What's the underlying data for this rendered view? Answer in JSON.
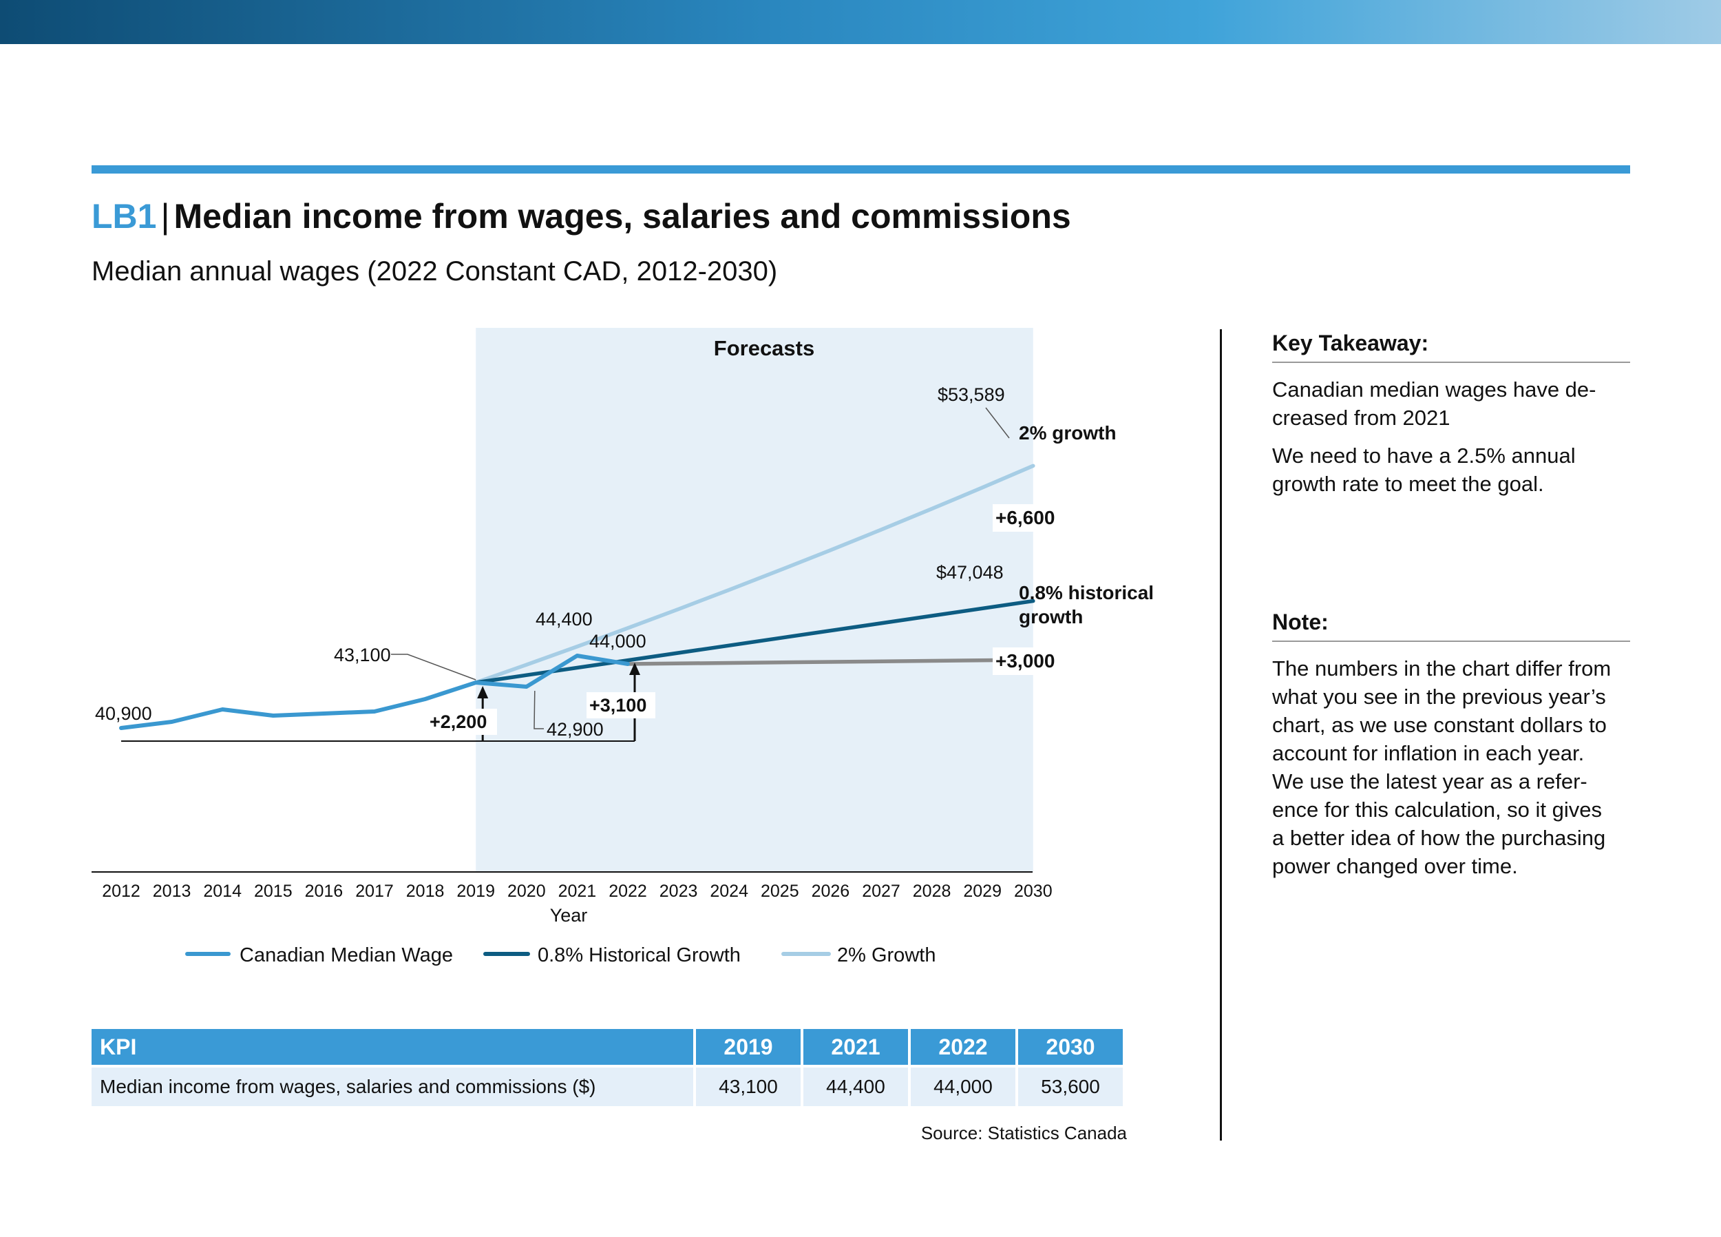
{
  "header": {
    "code": "LB1",
    "separator": "|",
    "title": "Median income from wages, salaries and commissions",
    "subtitle": "Median annual wages (2022 Constant CAD, 2012-2030)"
  },
  "chart_data": {
    "type": "line",
    "xlabel": "Year",
    "ylabel": "",
    "forecast_label": "Forecasts",
    "forecast_range": [
      2019,
      2030
    ],
    "x": [
      2012,
      2013,
      2014,
      2015,
      2016,
      2017,
      2018,
      2019,
      2020,
      2021,
      2022,
      2023,
      2024,
      2025,
      2026,
      2027,
      2028,
      2029,
      2030
    ],
    "series": [
      {
        "name": "Canadian Median Wage",
        "color": "#3a98d0",
        "x": [
          2012,
          2013,
          2014,
          2015,
          2016,
          2017,
          2018,
          2019,
          2020,
          2021,
          2022
        ],
        "values": [
          40900,
          41200,
          41800,
          41500,
          41600,
          41700,
          42300,
          43100,
          42900,
          44400,
          44000
        ]
      },
      {
        "name": "0.8% Historical Growth",
        "color": "#0d5c82",
        "x": [
          2019,
          2030
        ],
        "values": [
          43100,
          47048
        ]
      },
      {
        "name": "2% Growth",
        "color": "#a6cde5",
        "x": [
          2019,
          2020,
          2021,
          2022,
          2023,
          2024,
          2025,
          2026,
          2027,
          2028,
          2029,
          2030
        ],
        "values": [
          43100,
          43962,
          44841,
          45738,
          46653,
          47586,
          48538,
          49508,
          50499,
          51509,
          52539,
          53589
        ]
      },
      {
        "name": "",
        "color": "#8a8a8a",
        "x": [
          2022,
          2030
        ],
        "values": [
          44000,
          44200
        ]
      }
    ],
    "annotations": {
      "v2012": "40,900",
      "v2019": "43,100",
      "v2020": "42,900",
      "v2021": "44,400",
      "v2022": "44,000",
      "end_2pct": "$53,589",
      "end_hist": "$47,048",
      "label_2pct": "2% growth",
      "label_hist_1": "0.8% historical",
      "label_hist_2": "growth",
      "delta_2200": "+2,200",
      "delta_3100": "+3,100",
      "delta_6600": "+6,600",
      "delta_3000": "+3,000"
    },
    "legend_position": "bottom",
    "grid": false
  },
  "sidebar": {
    "takeaway_heading": "Key Takeaway:",
    "takeaway_lines": [
      "Canadian median wages have de-",
      "creased from 2021"
    ],
    "takeaway_p2_lines": [
      "We need to have a 2.5% annual",
      "growth rate to meet the goal."
    ],
    "note_heading": "Note:",
    "note_lines": [
      "The numbers in the chart differ from",
      "what you see in the previous year’s",
      "chart, as we use constant dollars to",
      "account for inflation in each year.",
      "We use the latest year as a refer-",
      "ence for this calculation, so it gives",
      "a better idea of how the purchasing",
      "power changed over time."
    ]
  },
  "kpi_table": {
    "headers": [
      "KPI",
      "2019",
      "2021",
      "2022",
      "2030"
    ],
    "row": [
      "Median income from wages, salaries and commissions ($)",
      "43,100",
      "44,400",
      "44,000",
      "53,600"
    ]
  },
  "source": "Source: Statistics Canada"
}
